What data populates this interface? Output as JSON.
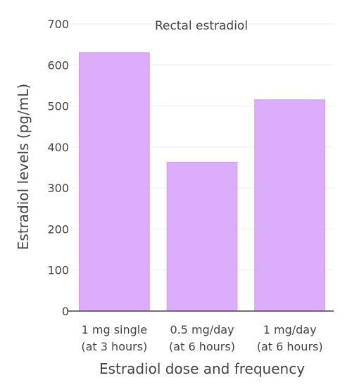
{
  "chart_data": {
    "type": "bar",
    "title": "Rectal estradiol",
    "xlabel": "Estradiol dose and frequency",
    "ylabel": "Estradiol levels (pg/mL)",
    "categories": [
      [
        "1 mg single",
        "(at 3 hours)"
      ],
      [
        "0.5 mg/day",
        "(at 6 hours)"
      ],
      [
        "1 mg/day",
        "(at 6 hours)"
      ]
    ],
    "values": [
      630,
      363,
      515
    ],
    "ylim": [
      0,
      700
    ],
    "yticks": [
      0,
      100,
      200,
      300,
      400,
      500,
      600,
      700
    ],
    "grid": true,
    "legend": "none",
    "colors": {
      "bar": "#dcadfb",
      "bar_edge": "#cf98f5",
      "grid": "#eeeeee",
      "axis": "#444444",
      "text": "#444444"
    }
  }
}
